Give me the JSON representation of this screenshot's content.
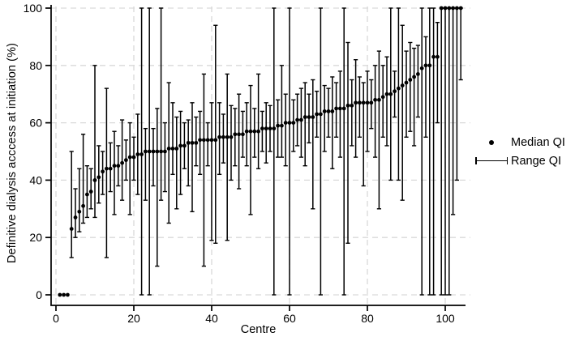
{
  "figure": {
    "xlabel": "Centre",
    "ylabel": "Definitive dialysis acccess at initiation (%)",
    "legend": {
      "median_label": "Median QI",
      "range_label": "Range QI"
    },
    "colors": {
      "data": "#000000",
      "axis": "#000000",
      "grid": "#d9d9d9",
      "background": "#ffffff",
      "tick_text": "#000000"
    }
  },
  "chart_data": {
    "type": "scatter",
    "subtype": "caterpillar-plot-with-range-whiskers",
    "title": "",
    "xlabel": "Centre",
    "ylabel": "Definitive dialysis acccess at initiation (%)",
    "xlim": [
      -3,
      107
    ],
    "ylim": [
      0,
      100
    ],
    "x_ticks": [
      0,
      20,
      40,
      60,
      80,
      100
    ],
    "y_ticks": [
      0,
      20,
      40,
      60,
      80,
      100
    ],
    "grid": "dashed, both axes, light gray",
    "legend_position": "right outside, middle",
    "n_centres": 104,
    "series": [
      {
        "name": "Median QI",
        "marker": "filled dot"
      },
      {
        "name": "Range QI",
        "marker": "vertical range bar with end caps"
      }
    ],
    "centre": [
      1,
      2,
      3,
      4,
      5,
      6,
      7,
      8,
      9,
      10,
      11,
      12,
      13,
      14,
      15,
      16,
      17,
      18,
      19,
      20,
      21,
      22,
      23,
      24,
      25,
      26,
      27,
      28,
      29,
      30,
      31,
      32,
      33,
      34,
      35,
      36,
      37,
      38,
      39,
      40,
      41,
      42,
      43,
      44,
      45,
      46,
      47,
      48,
      49,
      50,
      51,
      52,
      53,
      54,
      55,
      56,
      57,
      58,
      59,
      60,
      61,
      62,
      63,
      64,
      65,
      66,
      67,
      68,
      69,
      70,
      71,
      72,
      73,
      74,
      75,
      76,
      77,
      78,
      79,
      80,
      81,
      82,
      83,
      84,
      85,
      86,
      87,
      88,
      89,
      90,
      91,
      92,
      93,
      94,
      95,
      96,
      97,
      98,
      99,
      100,
      101,
      102,
      103,
      104
    ],
    "median": [
      0,
      0,
      0,
      23,
      27,
      29,
      31,
      35,
      36,
      40,
      41,
      43,
      44,
      44,
      45,
      45,
      46,
      47,
      48,
      48,
      49,
      49,
      50,
      50,
      50,
      50,
      50,
      50,
      51,
      51,
      51,
      52,
      52,
      53,
      53,
      53,
      54,
      54,
      54,
      54,
      54,
      55,
      55,
      55,
      55,
      56,
      56,
      56,
      57,
      57,
      57,
      57,
      58,
      58,
      58,
      58,
      59,
      59,
      60,
      60,
      60,
      61,
      61,
      62,
      62,
      62,
      63,
      63,
      64,
      64,
      64,
      65,
      65,
      65,
      66,
      66,
      67,
      67,
      67,
      67,
      67,
      68,
      68,
      69,
      70,
      70,
      71,
      72,
      73,
      74,
      75,
      76,
      77,
      79,
      80,
      80,
      83,
      83,
      100,
      100,
      100,
      100,
      100,
      100
    ],
    "min": [
      null,
      null,
      null,
      13,
      20,
      22,
      25,
      27,
      30,
      27,
      32,
      35,
      13,
      36,
      28,
      38,
      33,
      40,
      28,
      40,
      35,
      0,
      33,
      0,
      38,
      10,
      33,
      36,
      25,
      42,
      30,
      35,
      44,
      38,
      29,
      45,
      42,
      10,
      45,
      19,
      18,
      42,
      46,
      19,
      40,
      45,
      37,
      48,
      45,
      28,
      48,
      44,
      50,
      46,
      50,
      0,
      48,
      48,
      45,
      0,
      50,
      52,
      48,
      45,
      53,
      30,
      55,
      0,
      50,
      55,
      44,
      55,
      48,
      0,
      18,
      52,
      48,
      55,
      38,
      50,
      58,
      48,
      30,
      55,
      52,
      40,
      62,
      40,
      33,
      55,
      57,
      52,
      62,
      0,
      55,
      0,
      0,
      60,
      0,
      0,
      0,
      28,
      40,
      75
    ],
    "max": [
      null,
      null,
      null,
      50,
      37,
      44,
      56,
      45,
      44,
      80,
      52,
      50,
      72,
      53,
      57,
      52,
      61,
      54,
      60,
      55,
      63,
      100,
      58,
      100,
      58,
      65,
      100,
      60,
      74,
      67,
      62,
      64,
      60,
      61,
      67,
      62,
      64,
      77,
      60,
      67,
      94,
      67,
      63,
      77,
      66,
      65,
      70,
      64,
      67,
      73,
      65,
      77,
      64,
      67,
      66,
      100,
      68,
      80,
      70,
      100,
      68,
      70,
      72,
      74,
      70,
      75,
      71,
      100,
      73,
      72,
      76,
      74,
      78,
      100,
      88,
      75,
      82,
      76,
      74,
      78,
      75,
      80,
      85,
      80,
      83,
      100,
      78,
      100,
      94,
      85,
      88,
      86,
      87,
      100,
      90,
      100,
      100,
      95,
      100,
      100,
      100,
      100,
      100,
      100
    ]
  }
}
